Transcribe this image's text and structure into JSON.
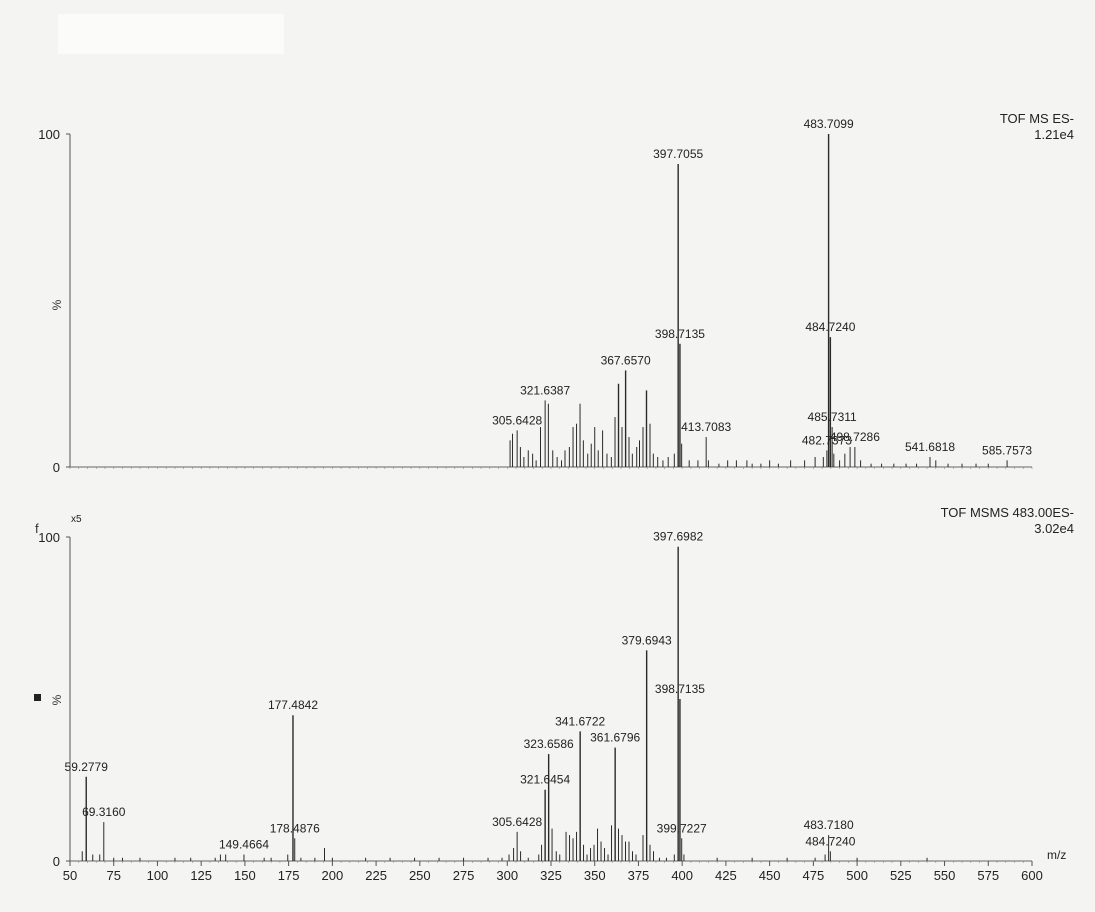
{
  "chart_data": [
    {
      "type": "line",
      "title": "TOF MS ES-",
      "subtitle": "1.21e4",
      "xlabel": "",
      "ylabel": "%",
      "xlim": [
        50,
        600
      ],
      "ylim": [
        0,
        100
      ],
      "yticks": [
        "100",
        "0"
      ],
      "peaks": [
        {
          "x": 301.6,
          "y": 8
        },
        {
          "x": 303.0,
          "y": 10
        },
        {
          "x": 305.6428,
          "y": 11
        },
        {
          "x": 307.5,
          "y": 6
        },
        {
          "x": 309.5,
          "y": 3
        },
        {
          "x": 312.0,
          "y": 5
        },
        {
          "x": 314.5,
          "y": 4
        },
        {
          "x": 316.5,
          "y": 2
        },
        {
          "x": 319.0,
          "y": 12
        },
        {
          "x": 321.6387,
          "y": 20
        },
        {
          "x": 323.5,
          "y": 19
        },
        {
          "x": 326.0,
          "y": 5
        },
        {
          "x": 328.5,
          "y": 3
        },
        {
          "x": 331.0,
          "y": 2
        },
        {
          "x": 333.0,
          "y": 5
        },
        {
          "x": 335.5,
          "y": 6
        },
        {
          "x": 337.6,
          "y": 12
        },
        {
          "x": 339.6,
          "y": 13
        },
        {
          "x": 341.6,
          "y": 19
        },
        {
          "x": 343.5,
          "y": 8
        },
        {
          "x": 346.0,
          "y": 4
        },
        {
          "x": 348.0,
          "y": 7
        },
        {
          "x": 350.0,
          "y": 12
        },
        {
          "x": 352.0,
          "y": 5
        },
        {
          "x": 354.5,
          "y": 11
        },
        {
          "x": 357.0,
          "y": 4
        },
        {
          "x": 359.5,
          "y": 3
        },
        {
          "x": 361.6,
          "y": 15
        },
        {
          "x": 363.6,
          "y": 25
        },
        {
          "x": 365.6,
          "y": 12
        },
        {
          "x": 367.657,
          "y": 29
        },
        {
          "x": 369.6,
          "y": 9
        },
        {
          "x": 371.5,
          "y": 4
        },
        {
          "x": 374.0,
          "y": 6
        },
        {
          "x": 375.6,
          "y": 8
        },
        {
          "x": 377.6,
          "y": 12
        },
        {
          "x": 379.6,
          "y": 23
        },
        {
          "x": 381.6,
          "y": 13
        },
        {
          "x": 383.5,
          "y": 4
        },
        {
          "x": 386.0,
          "y": 3
        },
        {
          "x": 389.0,
          "y": 2
        },
        {
          "x": 392.0,
          "y": 3
        },
        {
          "x": 395.5,
          "y": 4
        },
        {
          "x": 397.7055,
          "y": 91
        },
        {
          "x": 398.7135,
          "y": 37
        },
        {
          "x": 399.7,
          "y": 7
        },
        {
          "x": 404.0,
          "y": 2
        },
        {
          "x": 409.0,
          "y": 2
        },
        {
          "x": 413.7083,
          "y": 9
        },
        {
          "x": 415.0,
          "y": 2
        },
        {
          "x": 421.0,
          "y": 1
        },
        {
          "x": 426.0,
          "y": 2
        },
        {
          "x": 431.0,
          "y": 2
        },
        {
          "x": 437.0,
          "y": 2
        },
        {
          "x": 440.0,
          "y": 1
        },
        {
          "x": 445.0,
          "y": 1
        },
        {
          "x": 450.0,
          "y": 2
        },
        {
          "x": 455.0,
          "y": 1
        },
        {
          "x": 462.0,
          "y": 2
        },
        {
          "x": 470.0,
          "y": 2
        },
        {
          "x": 476.0,
          "y": 3
        },
        {
          "x": 480.7,
          "y": 3
        },
        {
          "x": 482.7373,
          "y": 5
        },
        {
          "x": 483.7099,
          "y": 100
        },
        {
          "x": 484.724,
          "y": 39
        },
        {
          "x": 485.7311,
          "y": 12
        },
        {
          "x": 486.7,
          "y": 4
        },
        {
          "x": 490.0,
          "y": 2
        },
        {
          "x": 493.0,
          "y": 4
        },
        {
          "x": 496.0,
          "y": 6
        },
        {
          "x": 498.7286,
          "y": 6
        },
        {
          "x": 502.0,
          "y": 2
        },
        {
          "x": 508.0,
          "y": 1
        },
        {
          "x": 514.0,
          "y": 1
        },
        {
          "x": 521.0,
          "y": 1
        },
        {
          "x": 528.0,
          "y": 1
        },
        {
          "x": 534.0,
          "y": 1
        },
        {
          "x": 541.6818,
          "y": 3
        },
        {
          "x": 545.0,
          "y": 2
        },
        {
          "x": 552.0,
          "y": 1
        },
        {
          "x": 560.0,
          "y": 1
        },
        {
          "x": 568.0,
          "y": 1
        },
        {
          "x": 575.0,
          "y": 1
        },
        {
          "x": 585.7573,
          "y": 2
        }
      ],
      "labels": [
        {
          "text": "305.6428",
          "x": 305.6428,
          "y": 11
        },
        {
          "text": "321.6387",
          "x": 321.6387,
          "y": 20
        },
        {
          "text": "367.6570",
          "x": 367.657,
          "y": 29
        },
        {
          "text": "397.7055",
          "x": 397.7055,
          "y": 91
        },
        {
          "text": "398.7135",
          "x": 398.7135,
          "y": 37
        },
        {
          "text": "413.7083",
          "x": 413.7083,
          "y": 9
        },
        {
          "text": "482.7373",
          "x": 482.7373,
          "y": 5
        },
        {
          "text": "483.7099",
          "x": 483.7099,
          "y": 100
        },
        {
          "text": "484.7240",
          "x": 484.724,
          "y": 39
        },
        {
          "text": "485.7311",
          "x": 485.7311,
          "y": 12
        },
        {
          "text": "498.7286",
          "x": 498.7286,
          "y": 6
        },
        {
          "text": "541.6818",
          "x": 541.6818,
          "y": 3
        },
        {
          "text": "585.7573",
          "x": 585.7573,
          "y": 2
        }
      ]
    },
    {
      "type": "line",
      "title": "TOF MSMS 483.00ES-",
      "subtitle": "3.02e4",
      "xlabel": "m/z",
      "ylabel": "%",
      "xlim": [
        50,
        600
      ],
      "ylim": [
        0,
        100
      ],
      "yticks": [
        "100",
        "0"
      ],
      "scale_marker": "x5",
      "xticks": [
        50,
        75,
        100,
        125,
        150,
        175,
        200,
        225,
        250,
        275,
        300,
        325,
        350,
        375,
        400,
        425,
        450,
        475,
        500,
        525,
        550,
        575,
        600
      ],
      "peaks": [
        {
          "x": 57.0,
          "y": 3
        },
        {
          "x": 59.2779,
          "y": 26
        },
        {
          "x": 63.0,
          "y": 2
        },
        {
          "x": 67.0,
          "y": 2
        },
        {
          "x": 69.316,
          "y": 12
        },
        {
          "x": 75.0,
          "y": 1
        },
        {
          "x": 80.0,
          "y": 1
        },
        {
          "x": 90.0,
          "y": 1
        },
        {
          "x": 110.0,
          "y": 1
        },
        {
          "x": 119.0,
          "y": 1
        },
        {
          "x": 133.0,
          "y": 1
        },
        {
          "x": 136.0,
          "y": 2
        },
        {
          "x": 139.0,
          "y": 2
        },
        {
          "x": 149.4664,
          "y": 2
        },
        {
          "x": 161.0,
          "y": 1
        },
        {
          "x": 165.0,
          "y": 1
        },
        {
          "x": 174.5,
          "y": 2
        },
        {
          "x": 177.4842,
          "y": 45
        },
        {
          "x": 178.4876,
          "y": 7
        },
        {
          "x": 182.0,
          "y": 1
        },
        {
          "x": 190.0,
          "y": 1
        },
        {
          "x": 195.5,
          "y": 4
        },
        {
          "x": 200.0,
          "y": 1
        },
        {
          "x": 219.0,
          "y": 1
        },
        {
          "x": 233.0,
          "y": 1
        },
        {
          "x": 247.0,
          "y": 1
        },
        {
          "x": 261.0,
          "y": 1
        },
        {
          "x": 275.0,
          "y": 1
        },
        {
          "x": 289.0,
          "y": 1
        },
        {
          "x": 297.0,
          "y": 1
        },
        {
          "x": 301.0,
          "y": 2
        },
        {
          "x": 303.6,
          "y": 4
        },
        {
          "x": 305.6428,
          "y": 9
        },
        {
          "x": 307.6,
          "y": 3
        },
        {
          "x": 312.0,
          "y": 1
        },
        {
          "x": 318.0,
          "y": 2
        },
        {
          "x": 319.6,
          "y": 5
        },
        {
          "x": 321.6454,
          "y": 22
        },
        {
          "x": 323.6586,
          "y": 33
        },
        {
          "x": 325.6,
          "y": 10
        },
        {
          "x": 328.0,
          "y": 3
        },
        {
          "x": 330.0,
          "y": 2
        },
        {
          "x": 333.6,
          "y": 9
        },
        {
          "x": 335.6,
          "y": 8
        },
        {
          "x": 337.6,
          "y": 7
        },
        {
          "x": 339.6,
          "y": 9
        },
        {
          "x": 341.6722,
          "y": 40
        },
        {
          "x": 343.6,
          "y": 5
        },
        {
          "x": 345.6,
          "y": 2
        },
        {
          "x": 347.6,
          "y": 4
        },
        {
          "x": 349.6,
          "y": 5
        },
        {
          "x": 351.6,
          "y": 10
        },
        {
          "x": 353.6,
          "y": 6
        },
        {
          "x": 355.6,
          "y": 4
        },
        {
          "x": 357.6,
          "y": 2
        },
        {
          "x": 359.6,
          "y": 11
        },
        {
          "x": 361.6796,
          "y": 35
        },
        {
          "x": 363.6,
          "y": 10
        },
        {
          "x": 365.6,
          "y": 8
        },
        {
          "x": 367.6,
          "y": 6
        },
        {
          "x": 369.6,
          "y": 6
        },
        {
          "x": 371.6,
          "y": 3
        },
        {
          "x": 373.6,
          "y": 2
        },
        {
          "x": 377.6,
          "y": 8
        },
        {
          "x": 379.6943,
          "y": 65
        },
        {
          "x": 381.6,
          "y": 5
        },
        {
          "x": 383.6,
          "y": 3
        },
        {
          "x": 387.0,
          "y": 1
        },
        {
          "x": 391.0,
          "y": 1
        },
        {
          "x": 395.5,
          "y": 2
        },
        {
          "x": 397.6982,
          "y": 97
        },
        {
          "x": 398.7135,
          "y": 50
        },
        {
          "x": 399.7227,
          "y": 7
        },
        {
          "x": 401.0,
          "y": 2
        },
        {
          "x": 420.0,
          "y": 1
        },
        {
          "x": 440.0,
          "y": 1
        },
        {
          "x": 460.0,
          "y": 1
        },
        {
          "x": 476.0,
          "y": 1
        },
        {
          "x": 481.7,
          "y": 2
        },
        {
          "x": 483.718,
          "y": 8
        },
        {
          "x": 484.724,
          "y": 3
        },
        {
          "x": 500.0,
          "y": 1
        },
        {
          "x": 540.0,
          "y": 1
        }
      ],
      "labels": [
        {
          "text": "59.2779",
          "x": 59.2779,
          "y": 26
        },
        {
          "text": "69.3160",
          "x": 69.316,
          "y": 12
        },
        {
          "text": "149.4664",
          "x": 149.4664,
          "y": 2
        },
        {
          "text": "177.4842",
          "x": 177.4842,
          "y": 45
        },
        {
          "text": "178.4876",
          "x": 178.4876,
          "y": 7
        },
        {
          "text": "305.6428",
          "x": 305.6428,
          "y": 9
        },
        {
          "text": "321.6454",
          "x": 321.6454,
          "y": 22
        },
        {
          "text": "323.6586",
          "x": 323.6586,
          "y": 33
        },
        {
          "text": "341.6722",
          "x": 341.6722,
          "y": 40
        },
        {
          "text": "361.6796",
          "x": 361.6796,
          "y": 35
        },
        {
          "text": "379.6943",
          "x": 379.6943,
          "y": 65
        },
        {
          "text": "397.6982",
          "x": 397.6982,
          "y": 97
        },
        {
          "text": "398.7135",
          "x": 398.7135,
          "y": 50
        },
        {
          "text": "399.7227",
          "x": 399.7227,
          "y": 7
        },
        {
          "text": "483.7180",
          "x": 483.718,
          "y": 8
        },
        {
          "text": "484.7240",
          "x": 484.724,
          "y": 3
        }
      ]
    }
  ],
  "panel_marker": "f"
}
